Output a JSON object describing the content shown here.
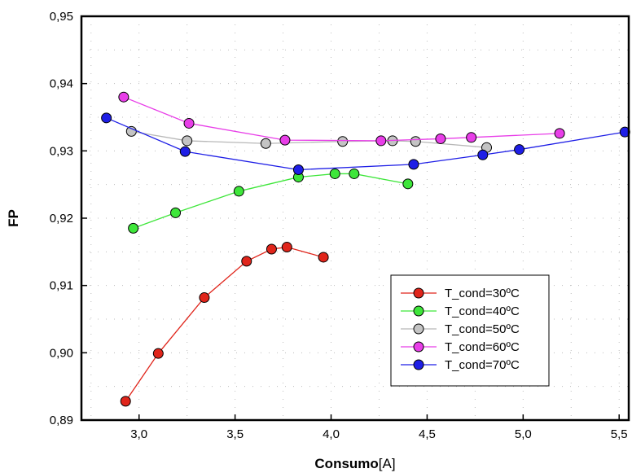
{
  "chart_data": {
    "type": "line",
    "xlabel_bold": "Consumo",
    "xlabel_unit": "[A]",
    "ylabel": "FP",
    "xlim": [
      2.7,
      5.55
    ],
    "ylim": [
      0.89,
      0.95
    ],
    "xticks": [
      3.0,
      3.5,
      4.0,
      4.5,
      5.0,
      5.5
    ],
    "xtick_labels": [
      "3,0",
      "3,5",
      "4,0",
      "4,5",
      "5,0",
      "5,5"
    ],
    "yticks": [
      0.89,
      0.9,
      0.91,
      0.92,
      0.93,
      0.94,
      0.95
    ],
    "ytick_labels": [
      "0,89",
      "0,90",
      "0,91",
      "0,92",
      "0,93",
      "0,94",
      "0,95"
    ],
    "grid": true,
    "legend_position": "lower-right",
    "series": [
      {
        "name": "T_cond=30ºC",
        "color": "#e0251b",
        "line_color": "#e0251b",
        "x": [
          2.93,
          3.1,
          3.34,
          3.56,
          3.69,
          3.77,
          3.96
        ],
        "y": [
          0.8928,
          0.8999,
          0.9082,
          0.9136,
          0.9154,
          0.9157,
          0.9142
        ]
      },
      {
        "name": "T_cond=40ºC",
        "color": "#3ee63a",
        "line_color": "#3ee63a",
        "x": [
          2.97,
          3.19,
          3.52,
          3.83,
          4.02,
          4.12,
          4.4
        ],
        "y": [
          0.9185,
          0.9208,
          0.924,
          0.9261,
          0.9266,
          0.9266,
          0.9251
        ]
      },
      {
        "name": "T_cond=50ºC",
        "color": "#c4c4c4",
        "line_color": "#b8b8b8",
        "x": [
          2.96,
          3.25,
          3.66,
          4.06,
          4.32,
          4.44,
          4.81
        ],
        "y": [
          0.9329,
          0.9315,
          0.9311,
          0.9314,
          0.9315,
          0.9314,
          0.9305
        ]
      },
      {
        "name": "T_cond=60ºC",
        "color": "#e83ee8",
        "line_color": "#e83ee8",
        "x": [
          2.92,
          3.26,
          3.76,
          4.26,
          4.57,
          4.73,
          5.19
        ],
        "y": [
          0.938,
          0.9341,
          0.9316,
          0.9315,
          0.9318,
          0.932,
          0.9326
        ]
      },
      {
        "name": "T_cond=70ºC",
        "color": "#1e1ee6",
        "line_color": "#1e1ee6",
        "x": [
          2.83,
          3.24,
          3.83,
          4.43,
          4.79,
          4.98,
          5.53
        ],
        "y": [
          0.9349,
          0.9299,
          0.9272,
          0.928,
          0.9294,
          0.9302,
          0.9328
        ]
      }
    ]
  }
}
